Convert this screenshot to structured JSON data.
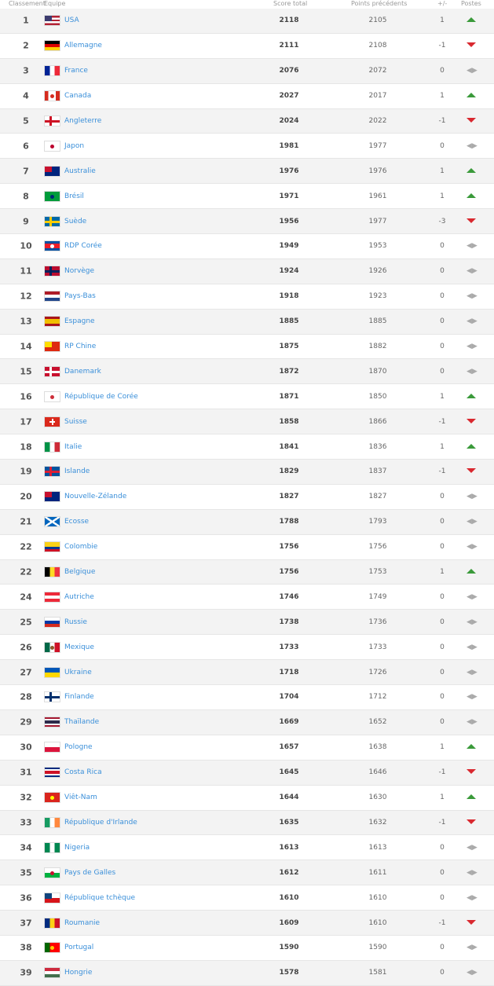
{
  "header": {
    "rank": "Classement",
    "team": "Equipe",
    "score": "Score total",
    "prev": "Points précédents",
    "diff": "+/-",
    "pos": "Postes"
  },
  "colors": {
    "up": "#3a9a3a",
    "down": "#d9282f",
    "link": "#3a8fd9",
    "stripe": "#f3f3f3"
  },
  "rows": [
    {
      "rank": "1",
      "team": "USA",
      "score": "2118",
      "prev": "2105",
      "diff": "1",
      "trend": "up",
      "flag": {
        "dir": "h",
        "colors": [
          "#b22234",
          "#fff",
          "#b22234",
          "#fff",
          "#b22234"
        ],
        "canton": "#3c3b6e"
      }
    },
    {
      "rank": "2",
      "team": "Allemagne",
      "score": "2111",
      "prev": "2108",
      "diff": "-1",
      "trend": "down",
      "flag": {
        "dir": "h",
        "colors": [
          "#000",
          "#dd0000",
          "#ffce00"
        ]
      }
    },
    {
      "rank": "3",
      "team": "France",
      "score": "2076",
      "prev": "2072",
      "diff": "0",
      "trend": "same",
      "flag": {
        "dir": "v",
        "colors": [
          "#002395",
          "#fff",
          "#ed2939"
        ]
      }
    },
    {
      "rank": "4",
      "team": "Canada",
      "score": "2027",
      "prev": "2017",
      "diff": "1",
      "trend": "up",
      "flag": {
        "dir": "v",
        "colors": [
          "#d52b1e",
          "#fff",
          "#fff",
          "#d52b1e"
        ],
        "dot": "#d52b1e"
      }
    },
    {
      "rank": "5",
      "team": "Angleterre",
      "score": "2024",
      "prev": "2022",
      "diff": "-1",
      "trend": "down",
      "flag": {
        "dir": "h",
        "colors": [
          "#fff"
        ],
        "cross": "#ce1124"
      }
    },
    {
      "rank": "6",
      "team": "Japon",
      "score": "1981",
      "prev": "1977",
      "diff": "0",
      "trend": "same",
      "flag": {
        "dir": "h",
        "colors": [
          "#fff"
        ],
        "dot": "#bc002d"
      }
    },
    {
      "rank": "7",
      "team": "Australie",
      "score": "1976",
      "prev": "1976",
      "diff": "1",
      "trend": "up",
      "flag": {
        "dir": "h",
        "colors": [
          "#00247d"
        ],
        "canton": "#c8102e"
      }
    },
    {
      "rank": "8",
      "team": "Brésil",
      "score": "1971",
      "prev": "1961",
      "diff": "1",
      "trend": "up",
      "flag": {
        "dir": "h",
        "colors": [
          "#009c3b"
        ],
        "dot": "#002776"
      }
    },
    {
      "rank": "9",
      "team": "Suède",
      "score": "1956",
      "prev": "1977",
      "diff": "-3",
      "trend": "down",
      "flag": {
        "dir": "h",
        "colors": [
          "#006aa7"
        ],
        "cross": "#fecc00"
      }
    },
    {
      "rank": "10",
      "team": "RDP Corée",
      "score": "1949",
      "prev": "1953",
      "diff": "0",
      "trend": "same",
      "flag": {
        "dir": "h",
        "colors": [
          "#024fa2",
          "#ed1c27",
          "#ed1c27",
          "#024fa2"
        ],
        "dot": "#fff"
      }
    },
    {
      "rank": "11",
      "team": "Norvège",
      "score": "1924",
      "prev": "1926",
      "diff": "0",
      "trend": "same",
      "flag": {
        "dir": "h",
        "colors": [
          "#ba0c2f"
        ],
        "cross": "#00205b"
      }
    },
    {
      "rank": "12",
      "team": "Pays-Bas",
      "score": "1918",
      "prev": "1923",
      "diff": "0",
      "trend": "same",
      "flag": {
        "dir": "h",
        "colors": [
          "#ae1c28",
          "#fff",
          "#21468b"
        ]
      }
    },
    {
      "rank": "13",
      "team": "Espagne",
      "score": "1885",
      "prev": "1885",
      "diff": "0",
      "trend": "same",
      "flag": {
        "dir": "h",
        "colors": [
          "#aa151b",
          "#f1bf00",
          "#f1bf00",
          "#aa151b"
        ]
      }
    },
    {
      "rank": "14",
      "team": "RP Chine",
      "score": "1875",
      "prev": "1882",
      "diff": "0",
      "trend": "same",
      "flag": {
        "dir": "h",
        "colors": [
          "#de2910"
        ],
        "canton": "#ffde00"
      }
    },
    {
      "rank": "15",
      "team": "Danemark",
      "score": "1872",
      "prev": "1870",
      "diff": "0",
      "trend": "same",
      "flag": {
        "dir": "h",
        "colors": [
          "#c8102e"
        ],
        "cross": "#fff"
      }
    },
    {
      "rank": "16",
      "team": "République de Corée",
      "score": "1871",
      "prev": "1850",
      "diff": "1",
      "trend": "up",
      "flag": {
        "dir": "h",
        "colors": [
          "#fff"
        ],
        "dot": "#cd2e3a"
      }
    },
    {
      "rank": "17",
      "team": "Suisse",
      "score": "1858",
      "prev": "1866",
      "diff": "-1",
      "trend": "down",
      "flag": {
        "dir": "h",
        "colors": [
          "#da291c"
        ],
        "plus": "#fff"
      }
    },
    {
      "rank": "18",
      "team": "Italie",
      "score": "1841",
      "prev": "1836",
      "diff": "1",
      "trend": "up",
      "flag": {
        "dir": "v",
        "colors": [
          "#009246",
          "#fff",
          "#ce2b37"
        ]
      }
    },
    {
      "rank": "19",
      "team": "Islande",
      "score": "1829",
      "prev": "1837",
      "diff": "-1",
      "trend": "down",
      "flag": {
        "dir": "h",
        "colors": [
          "#02529c"
        ],
        "cross": "#dc1e35"
      }
    },
    {
      "rank": "20",
      "team": "Nouvelle-Zélande",
      "score": "1827",
      "prev": "1827",
      "diff": "0",
      "trend": "same",
      "flag": {
        "dir": "h",
        "colors": [
          "#00247d"
        ],
        "canton": "#c8102e"
      }
    },
    {
      "rank": "21",
      "team": "Ecosse",
      "score": "1788",
      "prev": "1793",
      "diff": "0",
      "trend": "same",
      "flag": {
        "dir": "h",
        "colors": [
          "#0065bd"
        ],
        "saltire": "#fff"
      }
    },
    {
      "rank": "22",
      "team": "Colombie",
      "score": "1756",
      "prev": "1756",
      "diff": "0",
      "trend": "same",
      "flag": {
        "dir": "h",
        "colors": [
          "#fcd116",
          "#fcd116",
          "#003893",
          "#ce1126"
        ]
      }
    },
    {
      "rank": "22",
      "team": "Belgique",
      "score": "1756",
      "prev": "1753",
      "diff": "1",
      "trend": "up",
      "flag": {
        "dir": "v",
        "colors": [
          "#000",
          "#fdda24",
          "#ef3340"
        ]
      }
    },
    {
      "rank": "24",
      "team": "Autriche",
      "score": "1746",
      "prev": "1749",
      "diff": "0",
      "trend": "same",
      "flag": {
        "dir": "h",
        "colors": [
          "#ed2939",
          "#fff",
          "#ed2939"
        ]
      }
    },
    {
      "rank": "25",
      "team": "Russie",
      "score": "1738",
      "prev": "1736",
      "diff": "0",
      "trend": "same",
      "flag": {
        "dir": "h",
        "colors": [
          "#fff",
          "#0039a6",
          "#d52b1e"
        ]
      }
    },
    {
      "rank": "26",
      "team": "Mexique",
      "score": "1733",
      "prev": "1733",
      "diff": "0",
      "trend": "same",
      "flag": {
        "dir": "v",
        "colors": [
          "#006847",
          "#fff",
          "#ce1126"
        ],
        "dot": "#8b5a2b"
      }
    },
    {
      "rank": "27",
      "team": "Ukraine",
      "score": "1718",
      "prev": "1726",
      "diff": "0",
      "trend": "same",
      "flag": {
        "dir": "h",
        "colors": [
          "#0057b7",
          "#ffd700"
        ]
      }
    },
    {
      "rank": "28",
      "team": "Finlande",
      "score": "1704",
      "prev": "1712",
      "diff": "0",
      "trend": "same",
      "flag": {
        "dir": "h",
        "colors": [
          "#fff"
        ],
        "cross": "#002f6c"
      }
    },
    {
      "rank": "29",
      "team": "Thaïlande",
      "score": "1669",
      "prev": "1652",
      "diff": "0",
      "trend": "same",
      "flag": {
        "dir": "h",
        "colors": [
          "#a51931",
          "#f4f5f8",
          "#2d2a4a",
          "#2d2a4a",
          "#f4f5f8",
          "#a51931"
        ]
      }
    },
    {
      "rank": "30",
      "team": "Pologne",
      "score": "1657",
      "prev": "1638",
      "diff": "1",
      "trend": "up",
      "flag": {
        "dir": "h",
        "colors": [
          "#fff",
          "#dc143c"
        ]
      }
    },
    {
      "rank": "31",
      "team": "Costa Rica",
      "score": "1645",
      "prev": "1646",
      "diff": "-1",
      "trend": "down",
      "flag": {
        "dir": "h",
        "colors": [
          "#002b7f",
          "#fff",
          "#ce1126",
          "#ce1126",
          "#fff",
          "#002b7f"
        ]
      }
    },
    {
      "rank": "32",
      "team": "Viêt-Nam",
      "score": "1644",
      "prev": "1630",
      "diff": "1",
      "trend": "up",
      "flag": {
        "dir": "h",
        "colors": [
          "#da251d"
        ],
        "dot": "#ffff00"
      }
    },
    {
      "rank": "33",
      "team": "République d'Irlande",
      "score": "1635",
      "prev": "1632",
      "diff": "-1",
      "trend": "down",
      "flag": {
        "dir": "v",
        "colors": [
          "#169b62",
          "#fff",
          "#ff883e"
        ]
      }
    },
    {
      "rank": "34",
      "team": "Nigeria",
      "score": "1613",
      "prev": "1613",
      "diff": "0",
      "trend": "same",
      "flag": {
        "dir": "v",
        "colors": [
          "#008751",
          "#fff",
          "#008751"
        ]
      }
    },
    {
      "rank": "35",
      "team": "Pays de Galles",
      "score": "1612",
      "prev": "1611",
      "diff": "0",
      "trend": "same",
      "flag": {
        "dir": "h",
        "colors": [
          "#fff",
          "#00b140"
        ],
        "dot": "#c8102e"
      }
    },
    {
      "rank": "36",
      "team": "République tchèque",
      "score": "1610",
      "prev": "1610",
      "diff": "0",
      "trend": "same",
      "flag": {
        "dir": "h",
        "colors": [
          "#fff",
          "#d7141a"
        ],
        "canton": "#11457e"
      }
    },
    {
      "rank": "37",
      "team": "Roumanie",
      "score": "1609",
      "prev": "1610",
      "diff": "-1",
      "trend": "down",
      "flag": {
        "dir": "v",
        "colors": [
          "#002b7f",
          "#fcd116",
          "#ce1126"
        ]
      }
    },
    {
      "rank": "38",
      "team": "Portugal",
      "score": "1590",
      "prev": "1590",
      "diff": "0",
      "trend": "same",
      "flag": {
        "dir": "v",
        "colors": [
          "#006600",
          "#ff0000",
          "#ff0000"
        ],
        "dot": "#ffcc00"
      }
    },
    {
      "rank": "39",
      "team": "Hongrie",
      "score": "1578",
      "prev": "1581",
      "diff": "0",
      "trend": "same",
      "flag": {
        "dir": "h",
        "colors": [
          "#cd2a3e",
          "#fff",
          "#436f4d"
        ]
      }
    }
  ]
}
